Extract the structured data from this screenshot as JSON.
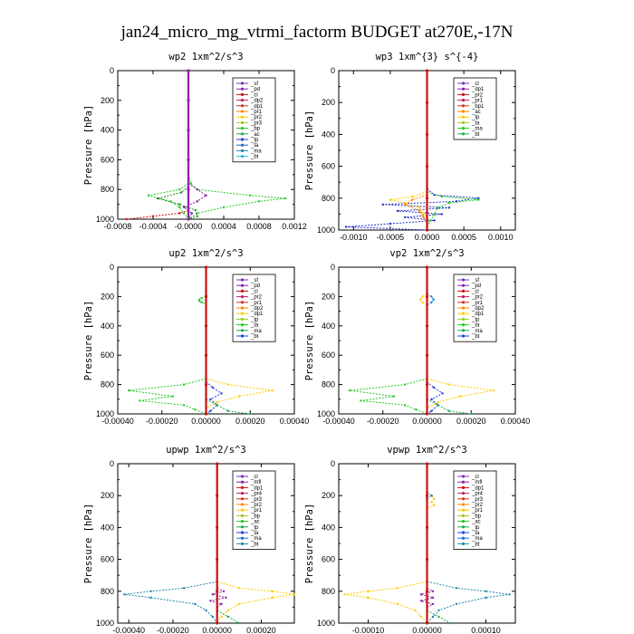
{
  "figure": {
    "title": "jan24_micro_mg_vtrmi_factorm  BUDGET at270E,-17N"
  },
  "chart_data": [
    {
      "type": "line",
      "title": "wp2  1xm^2/s^3",
      "ylabel": "Pressure [hPa]",
      "xlim": [
        -0.0008,
        0.0012
      ],
      "ylim": [
        1000,
        0
      ],
      "xticks": [
        -0.0008,
        -0.0004,
        0.0,
        0.0004,
        0.0008,
        0.0012
      ],
      "xtick_labels": [
        "-0.0008",
        "-0.0004",
        "-0.0000",
        "0.0004",
        "0.0008",
        "0.0012"
      ],
      "yticks": [
        0,
        200,
        400,
        600,
        800,
        1000
      ],
      "ytick_labels": [
        "0",
        "200",
        "400",
        "600",
        "800",
        "1000"
      ],
      "legend": [
        "_sf",
        "_pd",
        "_cl",
        "_dp2",
        "_dp1",
        "_pr1",
        "_pr2",
        "_pr3",
        "_bp",
        "_ac",
        "_tp",
        "_ta",
        "_ma",
        "_bt"
      ],
      "legend_placement": "top-right",
      "series": [
        {
          "color": "#22cc22",
          "p": [
            700,
            760,
            800,
            840,
            860,
            880,
            920,
            960,
            1000
          ],
          "x": [
            0,
            3e-05,
            0.0001,
            0.0007,
            0.0011,
            0.0008,
            0.0004,
            0.0001,
            0
          ]
        },
        {
          "color": "#22cc22",
          "p": [
            760,
            800,
            840,
            880,
            920,
            960,
            1000
          ],
          "x": [
            0,
            -0.0001,
            -0.00045,
            -0.0002,
            -0.0001,
            -5e-05,
            0
          ]
        },
        {
          "color": "#228822",
          "p": [
            780,
            820,
            860,
            900,
            940,
            980,
            1000
          ],
          "x": [
            0,
            -8e-05,
            -0.00035,
            -0.0001,
            8e-05,
            0.0001,
            0
          ]
        },
        {
          "color": "#cc1111",
          "p": [
            940,
            960,
            980,
            1000
          ],
          "x": [
            0,
            -0.0001,
            -0.0004,
            -0.0007
          ]
        },
        {
          "color": "#8822aa",
          "p": [
            760,
            800,
            840,
            880,
            920,
            960,
            1000
          ],
          "x": [
            0,
            0.0001,
            0.0002,
            0.0001,
            -5e-05,
            4e-05,
            0
          ]
        },
        {
          "color": "#2244dd",
          "p": [
            0,
            200,
            400,
            600,
            800,
            1000
          ],
          "x": [
            0,
            0,
            0,
            0,
            0,
            0
          ]
        },
        {
          "color": "#9922aa",
          "p": [
            0,
            200,
            400,
            600,
            800,
            1000
          ],
          "x": [
            0,
            0,
            0,
            0,
            0,
            0
          ]
        }
      ]
    },
    {
      "type": "line",
      "title": "wp3  1xm^{3} s^{-4}",
      "ylabel": "Pressure [hPa]",
      "xlim": [
        -0.0012,
        0.0012
      ],
      "ylim": [
        1000,
        0
      ],
      "xticks": [
        -0.001,
        -0.0005,
        0.0,
        0.0005,
        0.001
      ],
      "xtick_labels": [
        "-0.0010",
        "-0.0005",
        "0.0000",
        "0.0005",
        "0.0010"
      ],
      "yticks": [
        0,
        200,
        400,
        600,
        800,
        1000
      ],
      "ytick_labels": [
        "0",
        "200",
        "400",
        "600",
        "800",
        "1000"
      ],
      "legend": [
        "_cl",
        "_dp1",
        "_pr2",
        "_pr1",
        "_bp1",
        "_ac",
        "_tp",
        "_ta",
        "_ma",
        "_bt"
      ],
      "legend_placement": "top-right",
      "series": [
        {
          "color": "#2233cc",
          "p": [
            740,
            780,
            800,
            820,
            840,
            860,
            880,
            900,
            920,
            940,
            960,
            980,
            1000
          ],
          "x": [
            0,
            0.0001,
            0.0007,
            0.0004,
            -0.0006,
            0.0003,
            -0.0004,
            0.0002,
            -0.0003,
            0.0001,
            -0.0005,
            -0.0011,
            0
          ]
        },
        {
          "color": "#22cc22",
          "p": [
            760,
            790,
            810,
            830,
            860,
            900,
            940,
            980,
            1000
          ],
          "x": [
            0,
            0.0002,
            0.0007,
            0.0003,
            0.00015,
            0.0001,
            5e-05,
            0,
            0
          ]
        },
        {
          "color": "#ffcc00",
          "p": [
            760,
            790,
            810,
            830,
            860,
            900,
            940,
            980,
            1000
          ],
          "x": [
            0,
            -0.0002,
            -0.0005,
            -0.0003,
            -0.0001,
            -5e-05,
            0,
            0,
            0
          ]
        },
        {
          "color": "#ff8800",
          "p": [
            780,
            810,
            840,
            880,
            920,
            960,
            1000
          ],
          "x": [
            0,
            -0.0002,
            -0.0003,
            -0.0001,
            -5e-05,
            0,
            0
          ]
        },
        {
          "color": "#cc1111",
          "p": [
            0,
            200,
            400,
            600,
            800,
            1000
          ],
          "x": [
            0,
            0,
            0,
            0,
            0,
            0
          ]
        }
      ]
    },
    {
      "type": "line",
      "title": "up2  1xm^2/s^3",
      "ylabel": "Pressure [hPa]",
      "xlim": [
        -0.0004,
        0.0004
      ],
      "ylim": [
        1000,
        0
      ],
      "xticks": [
        -0.0004,
        -0.0002,
        0.0,
        0.0002,
        0.0004
      ],
      "xtick_labels": [
        "-0.00040",
        "-0.00020",
        "0.00000",
        "0.00020",
        "0.00040"
      ],
      "yticks": [
        0,
        200,
        400,
        600,
        800,
        1000
      ],
      "ytick_labels": [
        "0",
        "200",
        "400",
        "600",
        "800",
        "1000"
      ],
      "legend": [
        "_sf",
        "_pd",
        "_cl",
        "_pr2",
        "_pr1",
        "_dp2",
        "_dp1",
        "_tp",
        "_ta",
        "_ma",
        "_bt"
      ],
      "legend_placement": "top-right",
      "series": [
        {
          "color": "#22cc22",
          "p": [
            200,
            210,
            220,
            230,
            240,
            250
          ],
          "x": [
            0,
            -2e-05,
            -3e-05,
            -3e-05,
            -2e-05,
            0
          ]
        },
        {
          "color": "#22cc22",
          "p": [
            760,
            800,
            840,
            880,
            910,
            940,
            970,
            1000
          ],
          "x": [
            0,
            -0.0001,
            -0.00035,
            -0.00015,
            -0.0003,
            -0.0001,
            -5e-05,
            0
          ]
        },
        {
          "color": "#ffcc00",
          "p": [
            760,
            800,
            840,
            880,
            920,
            960,
            1000
          ],
          "x": [
            0,
            0.0001,
            0.0003,
            0.00015,
            5e-05,
            0,
            0
          ]
        },
        {
          "color": "#2244dd",
          "p": [
            780,
            820,
            860,
            900,
            940,
            980,
            1000
          ],
          "x": [
            0,
            3e-05,
            7e-05,
            2e-05,
            5e-05,
            2e-05,
            0
          ]
        },
        {
          "color": "#22aa55",
          "p": [
            900,
            940,
            980,
            1000
          ],
          "x": [
            0,
            5e-05,
            0.0001,
            0.0002
          ]
        },
        {
          "color": "#cc1111",
          "p": [
            0,
            200,
            400,
            600,
            800,
            1000
          ],
          "x": [
            0,
            0,
            0,
            0,
            0,
            0
          ]
        }
      ]
    },
    {
      "type": "line",
      "title": "vp2  1xm^2/s^3",
      "ylabel": "Pressure [hPa]",
      "xlim": [
        -0.0004,
        0.0004
      ],
      "ylim": [
        1000,
        0
      ],
      "xticks": [
        -0.0004,
        -0.0002,
        0.0,
        0.0002,
        0.0004
      ],
      "xtick_labels": [
        "-0.00040",
        "-0.00020",
        "0.00000",
        "0.00020",
        "0.00040"
      ],
      "yticks": [
        0,
        200,
        400,
        600,
        800,
        1000
      ],
      "ytick_labels": [
        "0",
        "200",
        "400",
        "600",
        "800",
        "1000"
      ],
      "legend": [
        "_sf",
        "_pd",
        "_cl",
        "_pr2",
        "_pr1",
        "_dp2",
        "_dp1",
        "_tp",
        "_ta",
        "_ma",
        "_bt"
      ],
      "legend_placement": "top-right",
      "series": [
        {
          "color": "#ffcc00",
          "p": [
            180,
            200,
            220,
            240,
            260
          ],
          "x": [
            0,
            -2e-05,
            -3e-05,
            -2e-05,
            0
          ]
        },
        {
          "color": "#2288cc",
          "p": [
            180,
            200,
            220,
            240,
            260
          ],
          "x": [
            0,
            2e-05,
            3e-05,
            2e-05,
            0
          ]
        },
        {
          "color": "#22cc22",
          "p": [
            760,
            800,
            840,
            880,
            910,
            940,
            970,
            1000
          ],
          "x": [
            0,
            -0.0001,
            -0.00035,
            -0.00015,
            -0.0003,
            -0.0001,
            -5e-05,
            0
          ]
        },
        {
          "color": "#ffcc00",
          "p": [
            760,
            800,
            840,
            880,
            920,
            960,
            1000
          ],
          "x": [
            0,
            0.0001,
            0.0003,
            0.00015,
            5e-05,
            0,
            0
          ]
        },
        {
          "color": "#2244dd",
          "p": [
            780,
            820,
            860,
            900,
            940,
            980,
            1000
          ],
          "x": [
            0,
            3e-05,
            7e-05,
            2e-05,
            5e-05,
            2e-05,
            0
          ]
        },
        {
          "color": "#22aa55",
          "p": [
            900,
            940,
            980,
            1000
          ],
          "x": [
            0,
            5e-05,
            0.0001,
            0.0002
          ]
        },
        {
          "color": "#cc1111",
          "p": [
            0,
            200,
            400,
            600,
            800,
            1000
          ],
          "x": [
            0,
            0,
            0,
            0,
            0,
            0
          ]
        }
      ]
    },
    {
      "type": "line",
      "title": "upwp  1xm^2/s^3",
      "ylabel": "Pressure [hPa]",
      "xlim": [
        -0.00045,
        0.00035
      ],
      "ylim": [
        1000,
        0
      ],
      "xticks": [
        -0.0004,
        -0.0002,
        0.0,
        0.0002
      ],
      "xtick_labels": [
        "-0.00040",
        "-0.00020",
        "0.00000",
        "0.00020"
      ],
      "yticks": [
        0,
        200,
        400,
        600,
        800,
        1000
      ],
      "ytick_labels": [
        "0",
        "200",
        "400",
        "600",
        "800",
        "1000"
      ],
      "legend": [
        "_cl",
        "_mfl",
        "_dp1",
        "_pr4",
        "_pr3",
        "_pr2",
        "_pr1",
        "_bp",
        "_ac",
        "_tp",
        "_ta",
        "_ma",
        "_bt"
      ],
      "legend_placement": "top-right",
      "series": [
        {
          "color": "#2288aa",
          "p": [
            740,
            780,
            800,
            820,
            840,
            880,
            920,
            960,
            1000
          ],
          "x": [
            0,
            -0.00015,
            -0.0003,
            -0.00042,
            -0.0003,
            -0.0001,
            -5e-05,
            -2e-05,
            0
          ]
        },
        {
          "color": "#ffcc00",
          "p": [
            740,
            780,
            800,
            820,
            840,
            880,
            920,
            960,
            1000
          ],
          "x": [
            0,
            0.0001,
            0.00025,
            0.00035,
            0.00025,
            0.0001,
            5e-05,
            2e-05,
            0
          ]
        },
        {
          "color": "#8822aa",
          "p": [
            780,
            800,
            820,
            840,
            860,
            880,
            900
          ],
          "x": [
            0,
            3e-05,
            -2e-05,
            4e-05,
            -3e-05,
            2e-05,
            0
          ]
        },
        {
          "color": "#22aa55",
          "p": [
            920,
            960,
            1000
          ],
          "x": [
            0,
            5e-05,
            0.0001
          ]
        },
        {
          "color": "#cc1111",
          "p": [
            0,
            200,
            400,
            600,
            800,
            1000
          ],
          "x": [
            0,
            0,
            0,
            0,
            0,
            0
          ]
        }
      ]
    },
    {
      "type": "line",
      "title": "vpwp  1xm^2/s^3",
      "ylabel": "Pressure [hPa]",
      "xlim": [
        -0.00015,
        0.00015
      ],
      "ylim": [
        1000,
        0
      ],
      "xticks": [
        -0.0001,
        0.0,
        0.0001
      ],
      "xtick_labels": [
        "-0.00010",
        "0.00000",
        "0.00010"
      ],
      "yticks": [
        0,
        200,
        400,
        600,
        800,
        1000
      ],
      "ytick_labels": [
        "0",
        "200",
        "400",
        "600",
        "800",
        "1000"
      ],
      "legend": [
        "_cl",
        "_mfl",
        "_dp1",
        "_pr4",
        "_pr3",
        "_pr2",
        "_pr1",
        "_bp",
        "_ac",
        "_tp",
        "_ta",
        "_ma",
        "_bt"
      ],
      "legend_placement": "top-right",
      "series": [
        {
          "color": "#ffcc00",
          "p": [
            180,
            200,
            220,
            240,
            260,
            280
          ],
          "x": [
            0,
            8e-06,
            1.2e-05,
            8e-06,
            1.2e-05,
            0
          ]
        },
        {
          "color": "#2288cc",
          "p": [
            180,
            200,
            220
          ],
          "x": [
            0,
            8e-06,
            0
          ]
        },
        {
          "color": "#2288aa",
          "p": [
            740,
            780,
            800,
            820,
            840,
            880,
            920,
            960,
            1000
          ],
          "x": [
            0,
            5e-05,
            0.0001,
            0.00014,
            0.0001,
            5e-05,
            2e-05,
            1e-05,
            0
          ]
        },
        {
          "color": "#ffcc00",
          "p": [
            740,
            780,
            800,
            820,
            840,
            880,
            920,
            960,
            1000
          ],
          "x": [
            0,
            -5e-05,
            -0.0001,
            -0.00014,
            -0.0001,
            -5e-05,
            -2e-05,
            -1e-05,
            0
          ]
        },
        {
          "color": "#8822aa",
          "p": [
            780,
            800,
            820,
            840,
            860,
            880,
            900
          ],
          "x": [
            0,
            1e-05,
            -1e-05,
            1e-05,
            -1e-05,
            1e-05,
            0
          ]
        },
        {
          "color": "#22aa55",
          "p": [
            920,
            960,
            1000
          ],
          "x": [
            0,
            2e-05,
            4e-05
          ]
        },
        {
          "color": "#cc1111",
          "p": [
            0,
            200,
            400,
            600,
            800,
            1000
          ],
          "x": [
            0,
            0,
            0,
            0,
            0,
            0
          ]
        }
      ]
    }
  ]
}
